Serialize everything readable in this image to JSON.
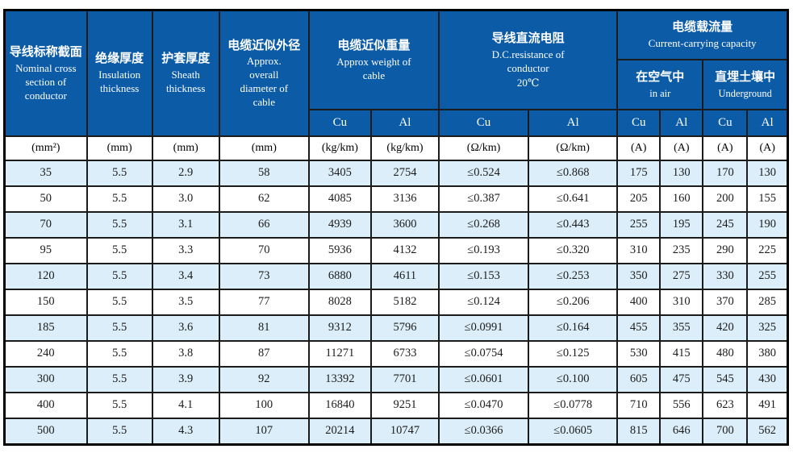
{
  "colors": {
    "header_bg": "#0b5ba7",
    "header_text": "#ffffff",
    "row_shade_bg": "#dceef9",
    "row_bg": "#ffffff",
    "grid_line": "#1b1b1b",
    "frame": "#000000",
    "body_text": "#1c1c1c"
  },
  "table": {
    "columns": {
      "nominal": {
        "zh": "导线标称截面",
        "en": "Nominal cross section of conductor",
        "unit": "(mm²)"
      },
      "insulation": {
        "zh": "绝缘厚度",
        "en": "Insulation thickness",
        "unit": "(mm)"
      },
      "sheath": {
        "zh": "护套厚度",
        "en": "Sheath thickness",
        "unit": "(mm)"
      },
      "diameter": {
        "zh": "电缆近似外径",
        "en": "Approx. overall diameter of cable",
        "unit": "(mm)"
      },
      "weight": {
        "zh": "电缆近似重量",
        "en": "Approx weight of cable",
        "unit": "(kg/km)"
      },
      "resistance": {
        "zh": "导线直流电阻",
        "en": "D.C.resistance of conductor",
        "temp": "20℃",
        "unit": "(Ω/km)"
      },
      "capacity": {
        "zh": "电缆载流量",
        "en": "Current-carrying capacity",
        "unit": "(A)"
      },
      "in_air": {
        "zh": "在空气中",
        "en": "in air"
      },
      "underground": {
        "zh": "直埋土壤中",
        "en": "Underground"
      }
    },
    "material_row": [
      "Cu",
      "Al",
      "Cu",
      "Al",
      "Cu",
      "Al",
      "Cu",
      "Al"
    ],
    "unit_row": [
      "(mm²)",
      "(mm)",
      "(mm)",
      "(mm)",
      "(kg/km)",
      "(kg/km)",
      "(Ω/km)",
      "(Ω/km)",
      "(A)",
      "(A)",
      "(A)",
      "(A)"
    ],
    "rows": [
      [
        "35",
        "5.5",
        "2.9",
        "58",
        "3405",
        "2754",
        "≤0.524",
        "≤0.868",
        "175",
        "130",
        "170",
        "130"
      ],
      [
        "50",
        "5.5",
        "3.0",
        "62",
        "4085",
        "3136",
        "≤0.387",
        "≤0.641",
        "205",
        "160",
        "200",
        "155"
      ],
      [
        "70",
        "5.5",
        "3.1",
        "66",
        "4939",
        "3600",
        "≤0.268",
        "≤0.443",
        "255",
        "195",
        "245",
        "190"
      ],
      [
        "95",
        "5.5",
        "3.3",
        "70",
        "5936",
        "4132",
        "≤0.193",
        "≤0.320",
        "310",
        "235",
        "290",
        "225"
      ],
      [
        "120",
        "5.5",
        "3.4",
        "73",
        "6880",
        "4611",
        "≤0.153",
        "≤0.253",
        "350",
        "275",
        "330",
        "255"
      ],
      [
        "150",
        "5.5",
        "3.5",
        "77",
        "8028",
        "5182",
        "≤0.124",
        "≤0.206",
        "400",
        "310",
        "370",
        "285"
      ],
      [
        "185",
        "5.5",
        "3.6",
        "81",
        "9312",
        "5796",
        "≤0.0991",
        "≤0.164",
        "455",
        "355",
        "420",
        "325"
      ],
      [
        "240",
        "5.5",
        "3.8",
        "87",
        "11271",
        "6733",
        "≤0.0754",
        "≤0.125",
        "530",
        "415",
        "480",
        "380"
      ],
      [
        "300",
        "5.5",
        "3.9",
        "92",
        "13392",
        "7701",
        "≤0.0601",
        "≤0.100",
        "605",
        "475",
        "545",
        "430"
      ],
      [
        "400",
        "5.5",
        "4.1",
        "100",
        "16840",
        "9251",
        "≤0.0470",
        "≤0.0778",
        "710",
        "556",
        "623",
        "491"
      ],
      [
        "500",
        "5.5",
        "4.3",
        "107",
        "20214",
        "10747",
        "≤0.0366",
        "≤0.0605",
        "815",
        "646",
        "700",
        "562"
      ]
    ]
  }
}
